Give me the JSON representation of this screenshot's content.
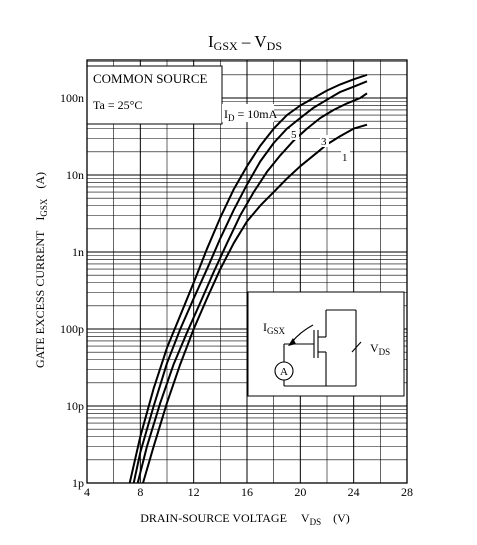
{
  "chart_data": {
    "type": "line",
    "title": {
      "main": "I",
      "sub1": "GSX",
      "mid": " – V",
      "sub2": "DS"
    },
    "xlabel": {
      "main": "DRAIN-SOURCE VOLTAGE",
      "sym": "V",
      "sub": "DS",
      "unit": "(V)"
    },
    "ylabel": {
      "main": "GATE EXCESS CURRENT",
      "sym": "I",
      "sub": "GSX",
      "unit": "(A)"
    },
    "x_ticks": [
      "4",
      "8",
      "12",
      "16",
      "20",
      "24",
      "28"
    ],
    "y_ticks": [
      "1p",
      "10p",
      "100p",
      "1n",
      "10n",
      "100n"
    ],
    "xlim": [
      4,
      28
    ],
    "ylim": [
      1e-12,
      3e-07
    ],
    "y_scale": "log",
    "grid": true,
    "legend_box": {
      "line1": "COMMON SOURCE",
      "line2": "Ta = 25°C"
    },
    "param_label": {
      "sym": "I",
      "sub": "D",
      "rest": " = 10mA"
    },
    "curve_labels": [
      "5",
      "3",
      "1"
    ],
    "series": [
      {
        "name": "5",
        "points": [
          [
            7.2,
            1e-12
          ],
          [
            8,
            4e-12
          ],
          [
            9,
            1.7e-11
          ],
          [
            10,
            5.7e-11
          ],
          [
            11,
            1.5e-10
          ],
          [
            12,
            4e-10
          ],
          [
            13,
            1.1e-09
          ],
          [
            14,
            2.8e-09
          ],
          [
            15,
            6.5e-09
          ],
          [
            16,
            1.3e-08
          ],
          [
            17,
            2.4e-08
          ],
          [
            18,
            4e-08
          ],
          [
            19,
            6e-08
          ],
          [
            20,
            8e-08
          ],
          [
            21,
            1e-07
          ],
          [
            22,
            1.25e-07
          ],
          [
            23,
            1.5e-07
          ],
          [
            24,
            1.75e-07
          ],
          [
            25,
            2e-07
          ]
        ]
      },
      {
        "name": "3",
        "points": [
          [
            7.5,
            1e-12
          ],
          [
            8,
            2.5e-12
          ],
          [
            9,
            1e-11
          ],
          [
            10,
            3.6e-11
          ],
          [
            11,
            1e-10
          ],
          [
            12,
            2.5e-10
          ],
          [
            13,
            6e-10
          ],
          [
            14,
            1.5e-09
          ],
          [
            15,
            3.5e-09
          ],
          [
            16,
            7.5e-09
          ],
          [
            17,
            1.5e-08
          ],
          [
            18,
            2.6e-08
          ],
          [
            19,
            4e-08
          ],
          [
            20,
            5.5e-08
          ],
          [
            21,
            7.5e-08
          ],
          [
            22,
            9.5e-08
          ],
          [
            23,
            1.2e-07
          ],
          [
            24,
            1.4e-07
          ],
          [
            25,
            1.65e-07
          ]
        ]
      },
      {
        "name": "—",
        "points": [
          [
            7.8,
            1e-12
          ],
          [
            8.5,
            3e-12
          ],
          [
            9.5,
            1.1e-11
          ],
          [
            10.5,
            3.5e-11
          ],
          [
            11.5,
            9e-11
          ],
          [
            12.5,
            2.2e-10
          ],
          [
            13.5,
            5.5e-10
          ],
          [
            14.5,
            1.3e-09
          ],
          [
            15.5,
            3e-09
          ],
          [
            16.5,
            6e-09
          ],
          [
            17.5,
            1.1e-08
          ],
          [
            18.5,
            1.8e-08
          ],
          [
            19.5,
            2.8e-08
          ],
          [
            20.5,
            4e-08
          ],
          [
            21.5,
            5.5e-08
          ],
          [
            22.5,
            7e-08
          ],
          [
            23.5,
            8.5e-08
          ],
          [
            24.5,
            1e-07
          ],
          [
            25,
            1.15e-07
          ]
        ]
      },
      {
        "name": "1",
        "points": [
          [
            8.2,
            1e-12
          ],
          [
            9,
            3e-12
          ],
          [
            10,
            1.1e-11
          ],
          [
            11,
            3.5e-11
          ],
          [
            12,
            1e-10
          ],
          [
            13,
            2.5e-10
          ],
          [
            14,
            6e-10
          ],
          [
            15,
            1.3e-09
          ],
          [
            16,
            2.5e-09
          ],
          [
            17,
            4e-09
          ],
          [
            18,
            6e-09
          ],
          [
            19,
            9e-09
          ],
          [
            20,
            1.3e-08
          ],
          [
            21,
            1.8e-08
          ],
          [
            22,
            2.5e-08
          ],
          [
            23,
            3.2e-08
          ],
          [
            24,
            4e-08
          ],
          [
            25,
            4.5e-08
          ]
        ]
      }
    ],
    "inset": {
      "current_sym": "I",
      "current_sub": "GSX",
      "volt_sym": "V",
      "volt_sub": "DS",
      "meter": "A"
    }
  }
}
